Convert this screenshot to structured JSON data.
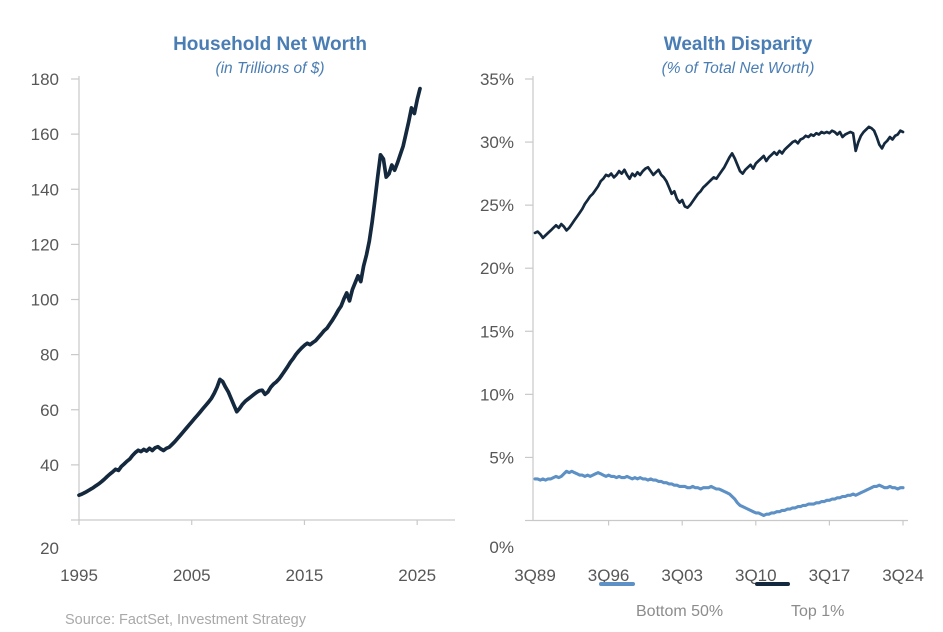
{
  "page": {
    "background": "#ffffff"
  },
  "source_note": "Source: FactSet, Investment Strategy",
  "colors": {
    "title_blue": "#4a7db3",
    "navy_line": "#14283e",
    "light_blue_line": "#5d90c5",
    "axis_gray": "#c9c9c9",
    "tick_label_gray": "#575757",
    "legend_gray": "#8c8c8c",
    "source_gray": "#a9a9a9"
  },
  "chart_data": [
    {
      "type": "line",
      "title": "Household Net Worth",
      "subtitle": "(in Trillions of $)",
      "title_color": "#4a7db3",
      "xlabel": "",
      "ylabel": "",
      "ylim": [
        20,
        180
      ],
      "grid": false,
      "x_range": [
        "1995Q1",
        "2025Q1"
      ],
      "frequency": "quarterly",
      "y_ticks": [
        {
          "label": "180",
          "value": 180
        },
        {
          "label": "160",
          "value": 160
        },
        {
          "label": "140",
          "value": 140
        },
        {
          "label": "120",
          "value": 120
        },
        {
          "label": "100",
          "value": 100
        },
        {
          "label": "80",
          "value": 80
        },
        {
          "label": "60",
          "value": 60
        },
        {
          "label": "40",
          "value": 40
        },
        {
          "label": "20",
          "value": 20
        }
      ],
      "x_ticks": [
        "1995",
        "2005",
        "2015",
        "2025"
      ],
      "legend": null,
      "series": [
        {
          "name": "Household Net Worth",
          "color": "#14283e",
          "values": [
            29.0,
            29.4,
            29.9,
            30.5,
            31.1,
            31.7,
            32.4,
            33.1,
            33.9,
            34.8,
            35.8,
            36.7,
            37.5,
            38.4,
            38.0,
            39.4,
            40.3,
            41.3,
            42.1,
            43.4,
            44.5,
            45.3,
            44.8,
            45.6,
            45.0,
            46.0,
            45.2,
            46.2,
            46.6,
            45.8,
            45.2,
            46.0,
            46.4,
            47.4,
            48.4,
            49.6,
            50.8,
            52.0,
            53.2,
            54.4,
            55.6,
            56.8,
            58.0,
            59.2,
            60.4,
            61.6,
            62.8,
            64.2,
            66.0,
            68.2,
            71.0,
            70.2,
            68.2,
            66.4,
            64.0,
            61.6,
            59.3,
            60.5,
            62.0,
            63.1,
            63.9,
            64.7,
            65.5,
            66.3,
            66.9,
            67.1,
            65.6,
            66.4,
            68.1,
            69.3,
            70.1,
            71.2,
            72.6,
            74.1,
            75.6,
            77.3,
            78.6,
            80.1,
            81.3,
            82.4,
            83.4,
            84.1,
            83.6,
            84.4,
            85.1,
            86.3,
            87.5,
            88.7,
            89.6,
            91.1,
            92.6,
            94.3,
            96.1,
            97.6,
            100.2,
            102.4,
            99.5,
            103.6,
            106.1,
            108.6,
            106.5,
            112.1,
            116.2,
            121.2,
            128.0,
            136.0,
            144.5,
            152.5,
            151.0,
            144.4,
            145.6,
            148.8,
            146.9,
            149.6,
            152.6,
            155.6,
            160.0,
            164.5,
            169.5,
            167.5,
            172.5,
            176.5
          ]
        }
      ]
    },
    {
      "type": "line",
      "title": "Wealth Disparity",
      "subtitle": "(% of Total Net Worth)",
      "title_color": "#4a7db3",
      "xlabel": "",
      "ylabel": "",
      "ylim": [
        0,
        35
      ],
      "grid": false,
      "x_range": [
        "3Q89",
        "3Q24"
      ],
      "frequency": "quarterly",
      "legend_position": "bottom",
      "y_ticks": [
        {
          "label": "35%",
          "value": 35
        },
        {
          "label": "30%",
          "value": 30
        },
        {
          "label": "25%",
          "value": 25
        },
        {
          "label": "20%",
          "value": 20
        },
        {
          "label": "15%",
          "value": 15
        },
        {
          "label": "10%",
          "value": 10
        },
        {
          "label": "5%",
          "value": 5
        },
        {
          "label": "0%",
          "value": 0
        }
      ],
      "x_ticks": [
        "3Q89",
        "3Q96",
        "3Q03",
        "3Q10",
        "3Q17",
        "3Q24"
      ],
      "legend": [
        "Bottom 50%",
        "Top 1%"
      ],
      "series": [
        {
          "name": "Bottom 50%",
          "color": "#5d90c5",
          "values": [
            3.3,
            3.3,
            3.2,
            3.3,
            3.2,
            3.3,
            3.3,
            3.4,
            3.5,
            3.4,
            3.5,
            3.7,
            3.9,
            3.8,
            3.9,
            3.8,
            3.7,
            3.6,
            3.6,
            3.5,
            3.6,
            3.5,
            3.6,
            3.7,
            3.8,
            3.7,
            3.6,
            3.5,
            3.6,
            3.5,
            3.5,
            3.4,
            3.5,
            3.4,
            3.4,
            3.5,
            3.4,
            3.3,
            3.4,
            3.3,
            3.4,
            3.3,
            3.3,
            3.2,
            3.3,
            3.2,
            3.2,
            3.1,
            3.1,
            3.0,
            3.0,
            2.9,
            2.9,
            2.8,
            2.8,
            2.7,
            2.7,
            2.7,
            2.6,
            2.6,
            2.7,
            2.6,
            2.6,
            2.5,
            2.6,
            2.6,
            2.6,
            2.7,
            2.6,
            2.5,
            2.5,
            2.4,
            2.3,
            2.2,
            2.1,
            1.9,
            1.7,
            1.4,
            1.2,
            1.1,
            1.0,
            0.9,
            0.8,
            0.7,
            0.6,
            0.6,
            0.5,
            0.4,
            0.5,
            0.5,
            0.6,
            0.6,
            0.7,
            0.7,
            0.8,
            0.8,
            0.9,
            0.9,
            1.0,
            1.0,
            1.1,
            1.1,
            1.2,
            1.2,
            1.3,
            1.3,
            1.3,
            1.4,
            1.4,
            1.5,
            1.5,
            1.6,
            1.6,
            1.7,
            1.7,
            1.8,
            1.8,
            1.9,
            1.9,
            2.0,
            2.0,
            2.1,
            2.0,
            2.1,
            2.2,
            2.3,
            2.4,
            2.5,
            2.6,
            2.7,
            2.7,
            2.8,
            2.7,
            2.6,
            2.6,
            2.7,
            2.6,
            2.6,
            2.5,
            2.6,
            2.6
          ]
        },
        {
          "name": "Top 1%",
          "color": "#14283e",
          "values": [
            22.8,
            22.9,
            22.7,
            22.4,
            22.6,
            22.8,
            23.0,
            23.2,
            23.4,
            23.2,
            23.5,
            23.3,
            23.0,
            23.2,
            23.5,
            23.8,
            24.1,
            24.4,
            24.7,
            25.1,
            25.4,
            25.7,
            25.9,
            26.2,
            26.5,
            26.9,
            27.1,
            27.4,
            27.3,
            27.5,
            27.2,
            27.4,
            27.7,
            27.5,
            27.8,
            27.4,
            27.1,
            27.5,
            27.3,
            27.6,
            27.4,
            27.7,
            27.9,
            28.0,
            27.7,
            27.4,
            27.6,
            27.8,
            27.4,
            27.2,
            26.9,
            26.4,
            25.9,
            26.1,
            25.5,
            25.2,
            25.4,
            24.9,
            24.8,
            25.0,
            25.3,
            25.6,
            25.9,
            26.1,
            26.4,
            26.6,
            26.8,
            27.0,
            27.2,
            27.1,
            27.4,
            27.7,
            28.0,
            28.4,
            28.8,
            29.1,
            28.7,
            28.2,
            27.7,
            27.5,
            27.8,
            28.0,
            28.2,
            27.9,
            28.3,
            28.5,
            28.7,
            28.9,
            28.5,
            28.8,
            29.0,
            29.2,
            29.0,
            29.3,
            29.1,
            29.4,
            29.6,
            29.8,
            30.0,
            30.1,
            29.9,
            30.2,
            30.3,
            30.5,
            30.4,
            30.6,
            30.5,
            30.7,
            30.6,
            30.8,
            30.7,
            30.8,
            30.7,
            30.9,
            30.8,
            30.6,
            30.8,
            30.4,
            30.6,
            30.7,
            30.8,
            30.7,
            29.3,
            30.0,
            30.5,
            30.8,
            31.0,
            31.2,
            31.1,
            30.9,
            30.4,
            29.8,
            29.5,
            29.9,
            30.1,
            30.4,
            30.2,
            30.5,
            30.6,
            30.9,
            30.8
          ]
        }
      ]
    }
  ]
}
